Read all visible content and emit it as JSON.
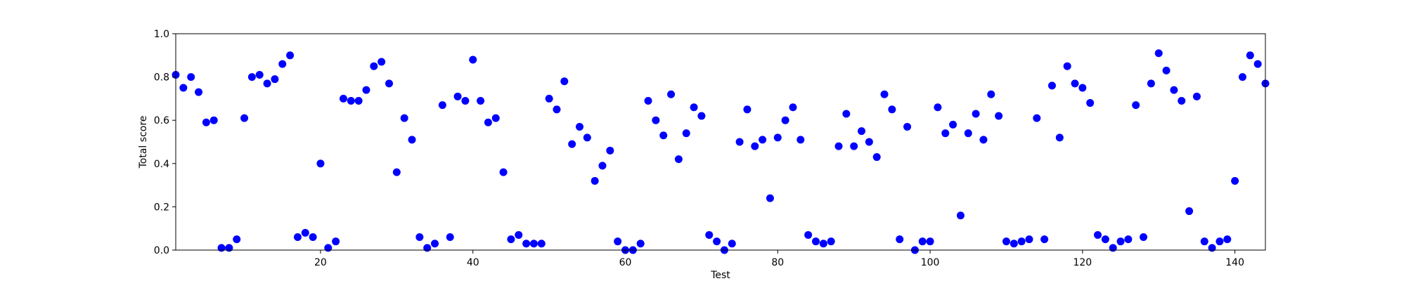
{
  "chart_data": {
    "type": "scatter",
    "title": "",
    "xlabel": "Test",
    "ylabel": "Total score",
    "xlim": [
      1,
      144
    ],
    "ylim": [
      0.0,
      1.0
    ],
    "xticks": [
      20,
      40,
      60,
      80,
      100,
      120,
      140
    ],
    "xtick_labels": [
      "20",
      "40",
      "60",
      "80",
      "100",
      "120",
      "140"
    ],
    "yticks": [
      0.0,
      0.2,
      0.4,
      0.6,
      0.8,
      1.0
    ],
    "ytick_labels": [
      "0.0",
      "0.2",
      "0.4",
      "0.6",
      "0.8",
      "1.0"
    ],
    "grid": false,
    "marker_color": "#0000ff",
    "series": [
      {
        "x": [
          1,
          2,
          3,
          4,
          5,
          6,
          7,
          8,
          9,
          10,
          11,
          12,
          13,
          14,
          15,
          16,
          17,
          18,
          19,
          20,
          21,
          22,
          23,
          24,
          25,
          26,
          27,
          28,
          29,
          30,
          31,
          32,
          33,
          34,
          35,
          36,
          37,
          38,
          39,
          40,
          41,
          42,
          43,
          44,
          45,
          46,
          47,
          48,
          49,
          50,
          51,
          52,
          53,
          54,
          55,
          56,
          57,
          58,
          59,
          60,
          61,
          62,
          63,
          64,
          65,
          66,
          67,
          68,
          69,
          70,
          71,
          72,
          73,
          74,
          75,
          76,
          77,
          78,
          79,
          80,
          81,
          82,
          83,
          84,
          85,
          86,
          87,
          88,
          89,
          90,
          91,
          92,
          93,
          94,
          95,
          96,
          97,
          98,
          99,
          100,
          101,
          102,
          103,
          104,
          105,
          106,
          107,
          108,
          109,
          110,
          111,
          112,
          113,
          114,
          115,
          116,
          117,
          118,
          119,
          120,
          121,
          122,
          123,
          124,
          125,
          126,
          127,
          128,
          129,
          130,
          131,
          132,
          133,
          134,
          135,
          136,
          137,
          138,
          139,
          140,
          141,
          142,
          143,
          144
        ],
        "y": [
          0.81,
          0.75,
          0.8,
          0.73,
          0.59,
          0.6,
          0.01,
          0.01,
          0.05,
          0.61,
          0.8,
          0.81,
          0.77,
          0.79,
          0.86,
          0.9,
          0.06,
          0.08,
          0.06,
          0.4,
          0.01,
          0.04,
          0.7,
          0.69,
          0.69,
          0.74,
          0.85,
          0.87,
          0.77,
          0.36,
          0.61,
          0.51,
          0.06,
          0.01,
          0.03,
          0.67,
          0.06,
          0.71,
          0.69,
          0.88,
          0.69,
          0.59,
          0.61,
          0.36,
          0.05,
          0.07,
          0.03,
          0.03,
          0.03,
          0.7,
          0.65,
          0.78,
          0.49,
          0.57,
          0.52,
          0.32,
          0.39,
          0.46,
          0.04,
          0.0,
          0.0,
          0.03,
          0.69,
          0.6,
          0.53,
          0.72,
          0.42,
          0.54,
          0.66,
          0.62,
          0.07,
          0.04,
          0.0,
          0.03,
          0.5,
          0.65,
          0.48,
          0.51,
          0.24,
          0.52,
          0.6,
          0.66,
          0.51,
          0.07,
          0.04,
          0.03,
          0.04,
          0.48,
          0.63,
          0.48,
          0.55,
          0.5,
          0.43,
          0.72,
          0.65,
          0.05,
          0.57,
          0.0,
          0.04,
          0.04,
          0.66,
          0.54,
          0.58,
          0.16,
          0.54,
          0.63,
          0.51,
          0.72,
          0.62,
          0.04,
          0.03,
          0.04,
          0.05,
          0.61,
          0.05,
          0.76,
          0.52,
          0.85,
          0.77,
          0.75,
          0.68,
          0.07,
          0.05,
          0.01,
          0.04,
          0.05,
          0.67,
          0.06,
          0.77,
          0.91,
          0.83,
          0.74,
          0.69,
          0.18,
          0.71,
          0.04,
          0.01,
          0.04,
          0.05,
          0.32,
          0.8,
          0.9,
          0.86,
          0.77
        ]
      }
    ]
  }
}
